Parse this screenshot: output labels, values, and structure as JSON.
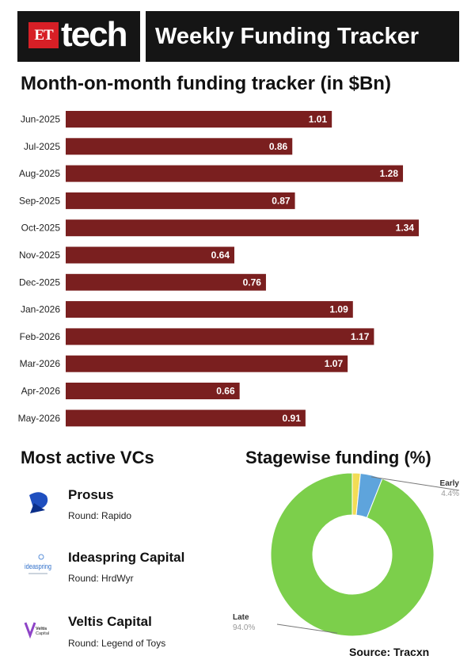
{
  "header": {
    "et_badge": "ET",
    "brand": "tech",
    "title": "Weekly Funding Tracker"
  },
  "chart_data": [
    {
      "type": "bar",
      "orientation": "horizontal",
      "title": "Month-on-month funding tracker (in $Bn)",
      "categories": [
        "Jun-2025",
        "Jul-2025",
        "Aug-2025",
        "Sep-2025",
        "Oct-2025",
        "Nov-2025",
        "Dec-2025",
        "Jan-2026",
        "Feb-2026",
        "Mar-2026",
        "Apr-2026",
        "May-2026"
      ],
      "values": [
        1.01,
        0.86,
        1.28,
        0.87,
        1.34,
        0.64,
        0.76,
        1.09,
        1.17,
        1.07,
        0.66,
        0.91
      ],
      "value_labels": [
        "1.01",
        "0.86",
        "1.28",
        "0.87",
        "1.34",
        "0.64",
        "0.76",
        "1.09",
        "1.17",
        "1.07",
        "0.66",
        "0.91"
      ],
      "xlim": [
        0,
        1.34
      ],
      "bar_color": "#7a1f1f",
      "grid": false
    },
    {
      "type": "pie",
      "variant": "donut",
      "title": "Stagewise funding (%)",
      "slices": [
        {
          "label": "Late",
          "value": 94.0,
          "value_label": "94.0%",
          "color": "#7ccf4b"
        },
        {
          "label": "Early",
          "value": 4.4,
          "value_label": "4.4%",
          "color": "#5ea4dc"
        },
        {
          "label": "",
          "value": 1.6,
          "value_label": "",
          "color": "#f2dc55"
        }
      ],
      "labelled_slices": [
        "Early",
        "Late"
      ]
    }
  ],
  "vcs_section": {
    "title": "Most active VCs",
    "items": [
      {
        "name": "Prosus",
        "round": "Round: Rapido",
        "logo_text": ""
      },
      {
        "name": "Ideaspring Capital",
        "round": "Round: HrdWyr",
        "logo_text": "ideaspring"
      },
      {
        "name": "Veltis Capital",
        "round": "Round: Legend of Toys",
        "logo_text": "Veltis Capital"
      }
    ]
  },
  "source": "Source: Tracxn",
  "colors": {
    "header_bg": "#151515",
    "et_red": "#d71f26",
    "bar": "#7a1f1f",
    "late": "#7ccf4b",
    "early": "#5ea4dc",
    "other": "#f2dc55"
  }
}
